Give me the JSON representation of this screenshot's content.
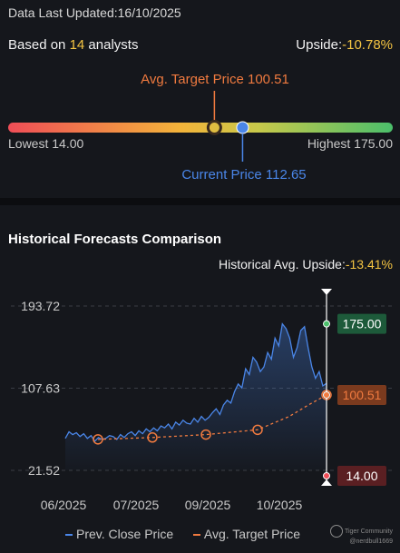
{
  "header": {
    "updated_label": "Data Last Updated:",
    "updated_date": "16/10/2025",
    "based_prefix": "Based on ",
    "analyst_count": "14",
    "based_suffix": " analysts",
    "upside_label": "Upside:",
    "upside_value": "-10.78%"
  },
  "range": {
    "avg_target_label": "Avg. Target Price 100.51",
    "current_price_label": "Current Price 112.65",
    "lowest_label": "Lowest 14.00",
    "highest_label": "Highest 175.00",
    "low": 14.0,
    "high": 175.0,
    "avg_target": 100.51,
    "current": 112.65
  },
  "history": {
    "title": "Historical Forecasts Comparison",
    "avg_upside_label": "Historical Avg. Upside:",
    "avg_upside_value": "-13.41%"
  },
  "colors": {
    "prev_close": "#4a86e8",
    "avg_target": "#f07a3f",
    "high_box": "#1d5a3a",
    "target_box": "#7a3a1e",
    "low_box": "#5a1f22"
  },
  "chart_data": {
    "type": "line",
    "x_ticks": [
      "06/2025",
      "07/2025",
      "09/2025",
      "10/2025"
    ],
    "y_ticks": [
      "193.72",
      "107.63",
      "21.52"
    ],
    "ylim": [
      21.52,
      193.72
    ],
    "series": [
      {
        "name": "Prev. Close Price",
        "values": [
          55,
          62,
          59,
          61,
          57,
          60,
          55,
          58,
          52,
          56,
          54,
          55,
          58,
          57,
          54,
          59,
          56,
          60,
          62,
          58,
          63,
          60,
          65,
          62,
          66,
          63,
          68,
          66,
          70,
          65,
          72,
          69,
          74,
          71,
          70,
          76,
          72,
          78,
          74,
          77,
          82,
          86,
          80,
          90,
          95,
          92,
          104,
          112,
          108,
          128,
          122,
          140,
          135,
          125,
          130,
          145,
          138,
          160,
          152,
          175,
          170,
          160,
          140,
          150,
          168,
          172,
          150,
          130,
          118,
          125,
          110,
          112.65
        ]
      },
      {
        "name": "Avg. Target Price",
        "values": [
          54,
          56,
          59,
          64,
          78,
          90,
          100.51
        ]
      }
    ],
    "markers": {
      "high_label": "175.00",
      "target_label": "100.51",
      "low_label": "14.00",
      "high": 175.0,
      "target": 100.51,
      "low": 14.0
    },
    "legend": [
      "Prev. Close Price",
      "Avg. Target Price"
    ]
  },
  "watermark": {
    "brand": "Tiger Community",
    "user": "@nerdbull1669"
  }
}
